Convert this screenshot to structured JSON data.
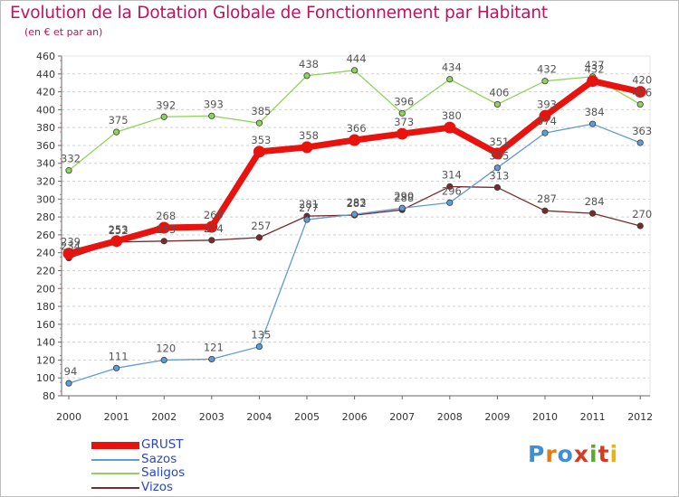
{
  "title": "Evolution de la Dotation Globale de Fonctionnement par Habitant",
  "subtitle": "(en € et par an)",
  "logo": {
    "letters": [
      "P",
      "r",
      "o",
      "x",
      "i",
      "t",
      "i"
    ],
    "colors": [
      "#3d8fd8",
      "#e07b1f",
      "#3d8fd8",
      "#d73a1e",
      "#5fa82f",
      "#d73a1e",
      "#e8b410"
    ]
  },
  "chart_data": {
    "type": "line",
    "title": "Evolution de la Dotation Globale de Fonctionnement par Habitant",
    "subtitle": "(en € et par an)",
    "x": [
      2000,
      2001,
      2002,
      2003,
      2004,
      2005,
      2006,
      2007,
      2008,
      2009,
      2010,
      2011,
      2012
    ],
    "xlabel": "",
    "ylabel": "",
    "ylim": [
      80,
      460
    ],
    "yticks": [
      80,
      100,
      120,
      140,
      160,
      180,
      200,
      220,
      240,
      260,
      280,
      300,
      320,
      340,
      360,
      380,
      400,
      420,
      440,
      460
    ],
    "grid": "horizontal dashed",
    "legend": "bottom-left",
    "series": [
      {
        "name": "GRUST",
        "color": "#e8130e",
        "values": [
          239,
          253,
          268,
          269,
          353,
          358,
          366,
          373,
          380,
          351,
          393,
          432,
          420
        ]
      },
      {
        "name": "Sazos",
        "color": "#5f9bd4",
        "values": [
          94,
          111,
          120,
          121,
          135,
          277,
          283,
          290,
          296,
          335,
          374,
          384,
          363
        ]
      },
      {
        "name": "Saligos",
        "color": "#8ed45a",
        "values": [
          332,
          375,
          392,
          393,
          385,
          438,
          444,
          396,
          434,
          406,
          432,
          437,
          406
        ]
      },
      {
        "name": "Vizos",
        "color": "#7a2a2a",
        "values": [
          234,
          252,
          253,
          254,
          257,
          281,
          282,
          288,
          314,
          313,
          287,
          284,
          270
        ]
      }
    ]
  }
}
